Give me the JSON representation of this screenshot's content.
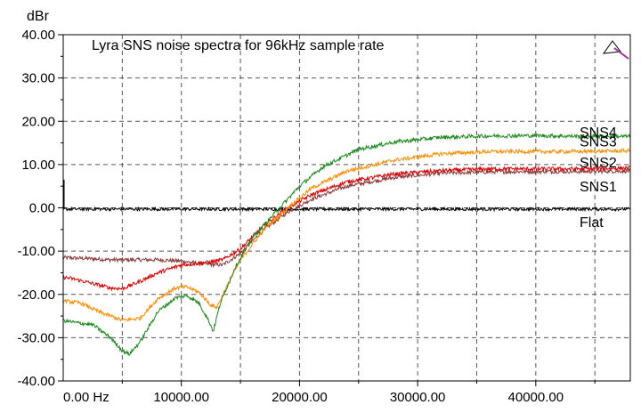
{
  "chart_data": {
    "type": "line",
    "title": "Lyra SNS noise spectra for 96kHz sample rate",
    "ylabel": "dBr",
    "xlabel": "",
    "xlim": [
      0,
      48000
    ],
    "ylim": [
      -40,
      40
    ],
    "x_ticks": [
      0,
      10000,
      20000,
      30000,
      40000
    ],
    "x_tick_labels": [
      "0.00 Hz",
      "10000.00",
      "20000.00",
      "30000.00",
      "40000.00"
    ],
    "y_ticks": [
      40,
      30,
      20,
      10,
      0,
      -10,
      -20,
      -30,
      -40
    ],
    "y_tick_labels": [
      "40.00",
      "30.00",
      "20.00",
      "10.00",
      "0.00",
      "-10.00",
      "-20.00",
      "-30.00",
      "-40.00"
    ],
    "grid": true,
    "legend": "inline labels at right end of curves",
    "cursor_icon": "pen-cursor-icon",
    "series": [
      {
        "name": "SNS4",
        "color": "#1a8a1a",
        "x": [
          0,
          1000,
          2500,
          4000,
          5000,
          5600,
          6500,
          8000,
          9500,
          10500,
          11500,
          12300,
          12700,
          13300,
          14500,
          16000,
          18000,
          20000,
          22000,
          25000,
          28000,
          32000,
          36000,
          40000,
          44000,
          48000
        ],
        "y": [
          -26,
          -26.5,
          -27,
          -30,
          -33,
          -33.8,
          -31,
          -24,
          -20.8,
          -20.3,
          -22,
          -26,
          -28.5,
          -22,
          -14,
          -7,
          -1,
          5,
          9.5,
          13.5,
          15.2,
          16.3,
          16.6,
          16.7,
          16.5,
          16.5
        ]
      },
      {
        "name": "SNS3",
        "color": "#ff8c00",
        "x": [
          0,
          1500,
          3000,
          5000,
          6500,
          8000,
          9500,
          10500,
          11500,
          12500,
          13000,
          13800,
          15000,
          17000,
          19000,
          21000,
          24000,
          28000,
          32000,
          36000,
          40000,
          44000,
          48000
        ],
        "y": [
          -21.5,
          -22,
          -24,
          -26,
          -25.5,
          -21,
          -18.5,
          -18.3,
          -19.5,
          -22.5,
          -23,
          -18.5,
          -12,
          -5,
          0,
          4.5,
          8.5,
          11,
          12.5,
          13,
          13,
          13,
          13.2
        ]
      },
      {
        "name": "SNS2",
        "color": "#e00000",
        "x": [
          0,
          1000,
          2500,
          4000,
          5000,
          6500,
          8000,
          10000,
          11500,
          12500,
          13500,
          15000,
          17000,
          19000,
          21000,
          24000,
          28000,
          32000,
          36000,
          40000,
          44000,
          48000
        ],
        "y": [
          -16,
          -16.5,
          -17.5,
          -18.5,
          -18.7,
          -17,
          -15,
          -13.2,
          -12.8,
          -12.5,
          -12,
          -9.5,
          -4,
          0,
          3,
          6,
          7.8,
          8.6,
          9,
          9,
          9,
          9.2
        ]
      },
      {
        "name": "SNS1",
        "color": "#8b3a3a",
        "x": [
          0,
          2000,
          4000,
          6000,
          8000,
          10000,
          12000,
          13500,
          15000,
          17000,
          19000,
          21000,
          24000,
          28000,
          32000,
          36000,
          40000,
          44000,
          48000
        ],
        "y": [
          -11.5,
          -11.7,
          -12,
          -12,
          -12,
          -12.3,
          -13,
          -13.2,
          -10.5,
          -5,
          -1,
          2,
          5,
          7,
          8,
          8.3,
          8.4,
          8.4,
          8.5
        ]
      },
      {
        "name": "Flat",
        "color": "#000000",
        "x": [
          0,
          48000
        ],
        "y": [
          -0.3,
          -0.3
        ]
      }
    ]
  }
}
